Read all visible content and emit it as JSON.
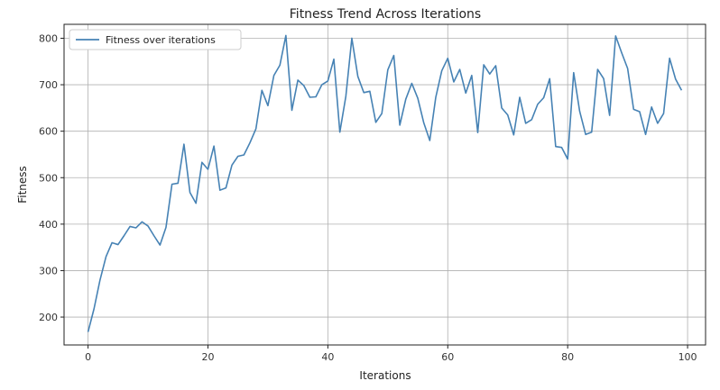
{
  "chart_data": {
    "type": "line",
    "title": "Fitness Trend Across Iterations",
    "xlabel": "Iterations",
    "ylabel": "Fitness",
    "xlim": [
      -4,
      103
    ],
    "ylim": [
      140,
      830
    ],
    "xticks": [
      0,
      20,
      40,
      60,
      80,
      100
    ],
    "yticks": [
      200,
      300,
      400,
      500,
      600,
      700,
      800
    ],
    "grid": true,
    "legend": "top-left",
    "series": [
      {
        "name": "Fitness over iterations",
        "color": "#4682b4",
        "x": [
          0,
          1,
          2,
          3,
          4,
          5,
          6,
          7,
          8,
          9,
          10,
          11,
          12,
          13,
          14,
          15,
          16,
          17,
          18,
          19,
          20,
          21,
          22,
          23,
          24,
          25,
          26,
          27,
          28,
          29,
          30,
          31,
          32,
          33,
          34,
          35,
          36,
          37,
          38,
          39,
          40,
          41,
          42,
          43,
          44,
          45,
          46,
          47,
          48,
          49,
          50,
          51,
          52,
          53,
          54,
          55,
          56,
          57,
          58,
          59,
          60,
          61,
          62,
          63,
          64,
          65,
          66,
          67,
          68,
          69,
          70,
          71,
          72,
          73,
          74,
          75,
          76,
          77,
          78,
          79,
          80,
          81,
          82,
          83,
          84,
          85,
          86,
          87,
          88,
          89,
          90,
          91,
          92,
          93,
          94,
          95,
          96,
          97,
          98,
          99
        ],
        "values": [
          168,
          218,
          280,
          330,
          360,
          356,
          375,
          395,
          392,
          405,
          396,
          375,
          355,
          393,
          486,
          488,
          572,
          468,
          445,
          533,
          518,
          568,
          473,
          478,
          527,
          546,
          549,
          575,
          605,
          688,
          655,
          720,
          742,
          806,
          645,
          710,
          698,
          673,
          674,
          700,
          708,
          755,
          598,
          675,
          800,
          718,
          683,
          686,
          619,
          638,
          732,
          763,
          613,
          669,
          703,
          671,
          618,
          580,
          673,
          730,
          757,
          706,
          733,
          682,
          720,
          597,
          743,
          723,
          741,
          650,
          635,
          592,
          673,
          617,
          625,
          658,
          672,
          713,
          567,
          565,
          540,
          726,
          643,
          593,
          598,
          733,
          713,
          634,
          805,
          769,
          735,
          647,
          642,
          593,
          652,
          617,
          638,
          757,
          712,
          688
        ]
      }
    ]
  }
}
